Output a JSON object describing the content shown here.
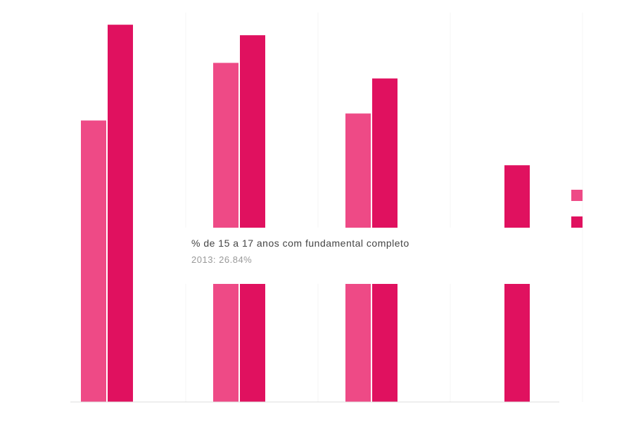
{
  "chart_data": {
    "type": "bar",
    "categories": [
      "",
      "",
      "",
      ""
    ],
    "series": [
      {
        "name": "",
        "color": "#ee4a86",
        "values": [
          72.3,
          87.1,
          74.1,
          0
        ]
      },
      {
        "name": "",
        "color": "#e0115f",
        "values": [
          96.9,
          94.2,
          83.1,
          60.8
        ]
      }
    ],
    "tooltip": {
      "title": "% de 15 a 17 anos com fundamental completo",
      "value": "2013: 26.84%"
    },
    "legend_position": "right",
    "grid": true
  }
}
